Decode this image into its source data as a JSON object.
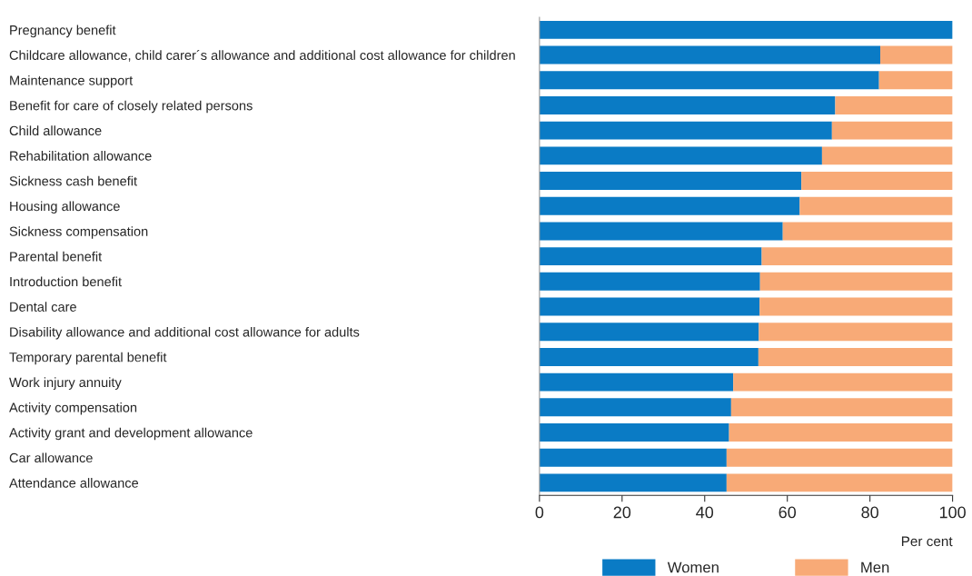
{
  "chart_data": {
    "type": "bar",
    "orientation": "horizontal",
    "stacked": true,
    "categories": [
      "Pregnancy benefit",
      "Childcare allowance, child carer´s allowance and additional cost allowance for children",
      "Maintenance support",
      "Benefit for care of closely related persons",
      "Child allowance",
      "Rehabilitation allowance",
      "Sickness cash benefit",
      "Housing allowance",
      "Sickness compensation",
      "Parental benefit",
      "Introduction benefit",
      "Dental care",
      "Disability allowance and additional cost allowance for adults",
      "Temporary parental benefit",
      "Work injury annuity",
      "Activity compensation",
      "Activity grant and development allowance",
      "Car allowance",
      "Attendance allowance"
    ],
    "series": [
      {
        "name": "Women",
        "color": "#0a7bc5",
        "values": [
          100,
          82.5,
          82.2,
          71.6,
          70.8,
          68.4,
          63.4,
          63.0,
          58.9,
          53.8,
          53.4,
          53.3,
          53.1,
          53.0,
          46.9,
          46.4,
          45.9,
          45.3,
          45.3
        ]
      },
      {
        "name": "Men",
        "color": "#f8aa77",
        "values": [
          0,
          17.5,
          17.8,
          28.4,
          29.2,
          31.6,
          36.6,
          37.0,
          41.1,
          46.2,
          46.6,
          46.7,
          46.9,
          47.0,
          53.1,
          53.6,
          54.1,
          54.7,
          54.7
        ]
      }
    ],
    "xlim": [
      0,
      100
    ],
    "xticks": [
      0,
      20,
      40,
      60,
      80,
      100
    ],
    "xlabel": "Per cent",
    "legend": "bottom",
    "grid": false
  }
}
